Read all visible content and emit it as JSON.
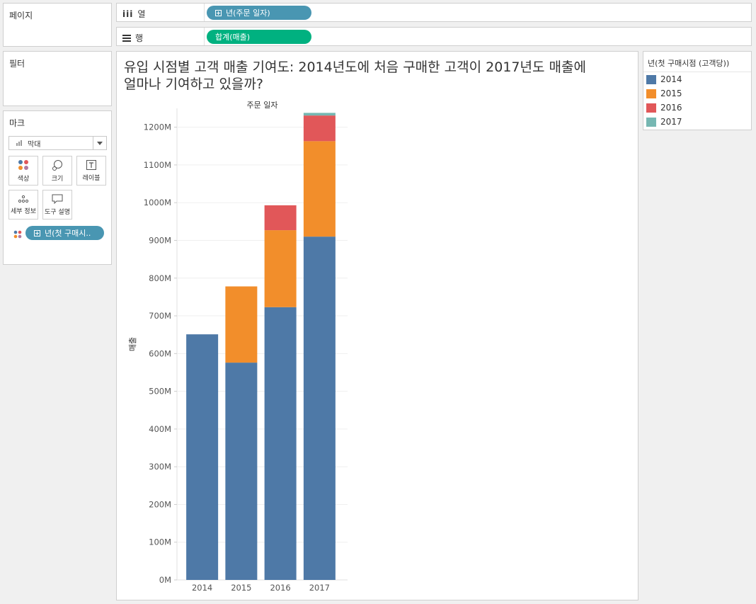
{
  "sidebar": {
    "pages_label": "페이지",
    "filters_label": "필터",
    "marks": {
      "title": "마크",
      "mark_type": "막대",
      "buttons": {
        "color": "색상",
        "size": "크기",
        "label": "레이블",
        "detail": "세부 정보",
        "tooltip": "도구 설명"
      },
      "color_pill": "년(첫 구매시.."
    }
  },
  "shelves": {
    "columns_label": "열",
    "columns_pill": "년(주문 일자)",
    "rows_label": "행",
    "rows_pill": "합계(매출)"
  },
  "view": {
    "title_line1": "유입 시점별 고객 매출 기여도: 2014년도에 처음 구매한 고객이 2017년도 매출에",
    "title_line2": "얼마나 기여하고 있을까?"
  },
  "legend": {
    "title": "년(첫 구매시점 (고객당))",
    "items": [
      {
        "label": "2014",
        "color": "#4e79a7"
      },
      {
        "label": "2015",
        "color": "#f28e2b"
      },
      {
        "label": "2016",
        "color": "#e15759"
      },
      {
        "label": "2017",
        "color": "#76b7b2"
      }
    ]
  },
  "chart_data": {
    "type": "bar",
    "stacked": true,
    "header": "주문 일자",
    "ylabel": "매출",
    "ylim": [
      0,
      1250
    ],
    "yticks": [
      0,
      100,
      200,
      300,
      400,
      500,
      600,
      700,
      800,
      900,
      1000,
      1100,
      1200
    ],
    "ytick_labels": [
      "0M",
      "100M",
      "200M",
      "300M",
      "400M",
      "500M",
      "600M",
      "700M",
      "800M",
      "900M",
      "1000M",
      "1100M",
      "1200M"
    ],
    "categories": [
      "2014",
      "2015",
      "2016",
      "2017"
    ],
    "series": [
      {
        "name": "2014",
        "values": [
          651,
          576,
          723,
          910
        ]
      },
      {
        "name": "2015",
        "values": [
          0,
          202,
          204,
          253
        ]
      },
      {
        "name": "2016",
        "values": [
          0,
          0,
          66,
          68
        ]
      },
      {
        "name": "2017",
        "values": [
          0,
          0,
          0,
          7
        ]
      }
    ]
  }
}
